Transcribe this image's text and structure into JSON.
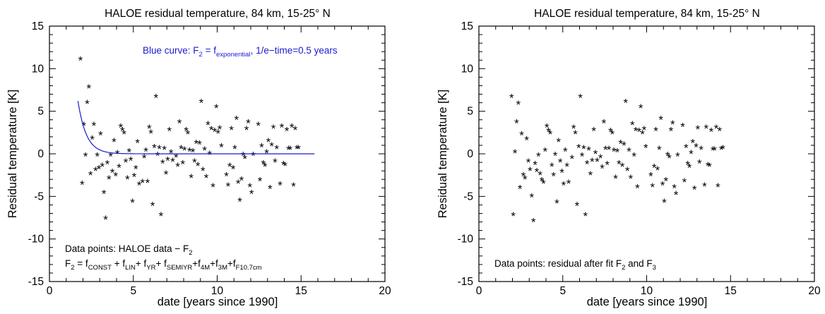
{
  "chart_data": [
    {
      "type": "scatter",
      "title": "HALOE residual temperature, 84 km, 15-25° N",
      "xlabel": "date [years since 1990]",
      "ylabel": "Residual temperature [K]",
      "xlim": [
        0,
        20
      ],
      "ylim": [
        -15,
        15
      ],
      "xticks": [
        "0",
        "5",
        "10",
        "15",
        "20"
      ],
      "yticks": [
        "-15",
        "-10",
        "-5",
        "0",
        "5",
        "10",
        "15"
      ],
      "marker": "*",
      "points": [
        [
          1.85,
          11.0
        ],
        [
          1.95,
          -3.6
        ],
        [
          2.05,
          3.3
        ],
        [
          2.15,
          -0.3
        ],
        [
          2.25,
          5.9
        ],
        [
          2.35,
          7.7
        ],
        [
          2.45,
          -2.5
        ],
        [
          2.55,
          1.7
        ],
        [
          2.65,
          3.3
        ],
        [
          2.75,
          -2.0
        ],
        [
          2.85,
          -0.3
        ],
        [
          2.95,
          -1.8
        ],
        [
          3.05,
          2.2
        ],
        [
          3.15,
          -1.5
        ],
        [
          3.25,
          -4.7
        ],
        [
          3.35,
          -7.7
        ],
        [
          3.45,
          -1.2
        ],
        [
          3.55,
          -3.0
        ],
        [
          3.65,
          -0.3
        ],
        [
          3.75,
          -2.2
        ],
        [
          3.85,
          1.4
        ],
        [
          3.95,
          -2.6
        ],
        [
          4.05,
          0.0
        ],
        [
          4.15,
          -1.6
        ],
        [
          4.25,
          3.1
        ],
        [
          4.35,
          2.7
        ],
        [
          4.45,
          2.3
        ],
        [
          4.55,
          -1.0
        ],
        [
          4.65,
          -3.0
        ],
        [
          4.75,
          0.2
        ],
        [
          4.85,
          -0.8
        ],
        [
          4.95,
          -5.7
        ],
        [
          5.05,
          -2.7
        ],
        [
          5.15,
          -1.8
        ],
        [
          5.25,
          1.3
        ],
        [
          5.35,
          -3.7
        ],
        [
          5.55,
          -3.4
        ],
        [
          5.65,
          -0.5
        ],
        [
          5.75,
          0.3
        ],
        [
          5.85,
          -3.4
        ],
        [
          5.95,
          3.0
        ],
        [
          6.05,
          2.4
        ],
        [
          6.15,
          -6.1
        ],
        [
          6.25,
          0.7
        ],
        [
          6.35,
          6.6
        ],
        [
          6.45,
          -0.2
        ],
        [
          6.55,
          0.6
        ],
        [
          6.65,
          -7.3
        ],
        [
          6.75,
          -1.1
        ],
        [
          6.85,
          0.5
        ],
        [
          6.95,
          -2.4
        ],
        [
          7.05,
          -0.8
        ],
        [
          7.15,
          2.7
        ],
        [
          7.25,
          0.1
        ],
        [
          7.35,
          -0.9
        ],
        [
          7.55,
          -0.4
        ],
        [
          7.65,
          -1.5
        ],
        [
          7.75,
          3.6
        ],
        [
          7.85,
          0.6
        ],
        [
          7.95,
          -1.2
        ],
        [
          8.05,
          0.4
        ],
        [
          8.15,
          2.7
        ],
        [
          8.25,
          2.3
        ],
        [
          8.35,
          0.3
        ],
        [
          8.45,
          -2.8
        ],
        [
          8.55,
          0.2
        ],
        [
          8.65,
          -1.0
        ],
        [
          8.75,
          1.2
        ],
        [
          8.85,
          -1.4
        ],
        [
          8.95,
          1.1
        ],
        [
          9.05,
          6.0
        ],
        [
          9.15,
          -2.0
        ],
        [
          9.25,
          0.4
        ],
        [
          9.35,
          -2.8
        ],
        [
          9.45,
          3.4
        ],
        [
          9.55,
          -0.1
        ],
        [
          9.65,
          2.8
        ],
        [
          9.75,
          -3.9
        ],
        [
          9.85,
          2.6
        ],
        [
          9.95,
          5.4
        ],
        [
          10.05,
          2.4
        ],
        [
          10.15,
          2.9
        ],
        [
          10.25,
          0.8
        ],
        [
          10.55,
          -2.6
        ],
        [
          10.65,
          -3.8
        ],
        [
          10.75,
          -1.5
        ],
        [
          10.85,
          2.8
        ],
        [
          10.95,
          -1.8
        ],
        [
          11.05,
          0.6
        ],
        [
          11.15,
          4.0
        ],
        [
          11.25,
          -3.5
        ],
        [
          11.35,
          -5.6
        ],
        [
          11.45,
          -3.1
        ],
        [
          11.55,
          -0.2
        ],
        [
          11.65,
          -0.6
        ],
        [
          11.75,
          2.8
        ],
        [
          11.85,
          3.6
        ],
        [
          11.95,
          -3.9
        ],
        [
          12.05,
          -4.7
        ],
        [
          12.15,
          -0.2
        ],
        [
          12.45,
          3.3
        ],
        [
          12.55,
          -3.2
        ],
        [
          12.65,
          0.8
        ],
        [
          12.75,
          -1.2
        ],
        [
          12.85,
          -1.5
        ],
        [
          12.95,
          0.1
        ],
        [
          13.05,
          1.4
        ],
        [
          13.15,
          -4.1
        ],
        [
          13.25,
          0.9
        ],
        [
          13.35,
          3.0
        ],
        [
          13.45,
          -1.0
        ],
        [
          13.55,
          0.6
        ],
        [
          13.75,
          -3.7
        ],
        [
          13.85,
          3.1
        ],
        [
          13.95,
          -1.3
        ],
        [
          14.05,
          -1.4
        ],
        [
          14.15,
          2.7
        ],
        [
          14.25,
          0.5
        ],
        [
          14.35,
          0.5
        ],
        [
          14.45,
          3.1
        ],
        [
          14.55,
          -3.8
        ],
        [
          14.65,
          2.8
        ],
        [
          14.75,
          0.6
        ],
        [
          14.85,
          0.6
        ]
      ],
      "curve": {
        "label": "Blue curve: F2 = fexponential, 1/e−time=0.5 years",
        "type": "exponential",
        "x_start": 1.7,
        "x_end": 15.8,
        "y0": 6.2,
        "efold_years": 0.5
      },
      "annotations": {
        "curve_prefix": "Blue curve: F",
        "curve_sub1": "2",
        "curve_mid": " = f",
        "curve_sub2": "exponential",
        "curve_suffix": ", 1/e−time=0.5 years",
        "line1_text": "Data points: HALOE data − F",
        "line1_sub": "2",
        "f2_parts": [
          {
            "t": "F"
          },
          {
            "t": "2",
            "sub": true
          },
          {
            "t": " = f"
          },
          {
            "t": "CONST",
            "sub": true
          },
          {
            "t": " + f"
          },
          {
            "t": "LIN",
            "sub": true
          },
          {
            "t": "+ f"
          },
          {
            "t": "YR",
            "sub": true
          },
          {
            "t": "+ f"
          },
          {
            "t": "SEMIYR",
            "sub": true
          },
          {
            "t": "+f"
          },
          {
            "t": "4M",
            "sub": true
          },
          {
            "t": "+f"
          },
          {
            "t": "3M",
            "sub": true
          },
          {
            "t": "+f"
          },
          {
            "t": "F10.7cm",
            "sub": true
          }
        ]
      }
    },
    {
      "type": "scatter",
      "title": "HALOE residual temperature, 84 km, 15-25° N",
      "xlabel": "date [years since 1990]",
      "ylabel": "Residual temperature [K]",
      "xlim": [
        0,
        20
      ],
      "ylim": [
        -15,
        15
      ],
      "xticks": [
        "0",
        "5",
        "10",
        "15",
        "20"
      ],
      "yticks": [
        "-15",
        "-10",
        "-5",
        "0",
        "5",
        "10",
        "15"
      ],
      "marker": "*",
      "points": [
        [
          1.95,
          6.6
        ],
        [
          2.05,
          -7.3
        ],
        [
          2.15,
          0.1
        ],
        [
          2.25,
          3.6
        ],
        [
          2.35,
          5.8
        ],
        [
          2.45,
          -4.1
        ],
        [
          2.55,
          2.2
        ],
        [
          2.65,
          -2.6
        ],
        [
          2.75,
          -3.0
        ],
        [
          2.85,
          1.6
        ],
        [
          2.95,
          -1.0
        ],
        [
          3.05,
          -2.0
        ],
        [
          3.15,
          -5.1
        ],
        [
          3.25,
          -8.0
        ],
        [
          3.35,
          -1.3
        ],
        [
          3.45,
          -2.1
        ],
        [
          3.55,
          -0.3
        ],
        [
          3.65,
          -2.5
        ],
        [
          3.75,
          -3.2
        ],
        [
          3.85,
          -3.5
        ],
        [
          3.95,
          0.3
        ],
        [
          4.05,
          3.1
        ],
        [
          4.15,
          2.6
        ],
        [
          4.25,
          2.3
        ],
        [
          4.35,
          -1.5
        ],
        [
          4.45,
          -2.6
        ],
        [
          4.55,
          -0.2
        ],
        [
          4.65,
          -5.8
        ],
        [
          4.75,
          1.4
        ],
        [
          4.85,
          -1.0
        ],
        [
          4.95,
          -2.2
        ],
        [
          5.05,
          -3.7
        ],
        [
          5.15,
          0.3
        ],
        [
          5.25,
          -1.5
        ],
        [
          5.35,
          -3.5
        ],
        [
          5.55,
          -0.6
        ],
        [
          5.65,
          3.0
        ],
        [
          5.75,
          2.3
        ],
        [
          5.85,
          -6.1
        ],
        [
          5.95,
          0.7
        ],
        [
          6.05,
          6.6
        ],
        [
          6.15,
          -0.3
        ],
        [
          6.25,
          0.6
        ],
        [
          6.35,
          -7.3
        ],
        [
          6.45,
          -1.2
        ],
        [
          6.55,
          0.4
        ],
        [
          6.65,
          -2.5
        ],
        [
          6.75,
          -0.9
        ],
        [
          6.85,
          2.7
        ],
        [
          6.95,
          0.0
        ],
        [
          7.05,
          -0.9
        ],
        [
          7.25,
          -0.5
        ],
        [
          7.35,
          -1.7
        ],
        [
          7.45,
          3.6
        ],
        [
          7.55,
          0.5
        ],
        [
          7.65,
          -1.3
        ],
        [
          7.75,
          0.5
        ],
        [
          7.85,
          2.6
        ],
        [
          7.95,
          2.3
        ],
        [
          8.05,
          0.3
        ],
        [
          8.15,
          -2.9
        ],
        [
          8.25,
          0.2
        ],
        [
          8.35,
          -1.2
        ],
        [
          8.45,
          1.2
        ],
        [
          8.55,
          -1.5
        ],
        [
          8.65,
          1.0
        ],
        [
          8.75,
          6.0
        ],
        [
          8.85,
          -2.0
        ],
        [
          8.95,
          0.3
        ],
        [
          9.05,
          -2.9
        ],
        [
          9.15,
          3.4
        ],
        [
          9.25,
          -0.3
        ],
        [
          9.35,
          2.7
        ],
        [
          9.45,
          -4.0
        ],
        [
          9.55,
          2.6
        ],
        [
          9.65,
          5.4
        ],
        [
          9.75,
          2.3
        ],
        [
          9.85,
          2.8
        ],
        [
          9.95,
          0.7
        ],
        [
          10.25,
          -2.6
        ],
        [
          10.35,
          -3.9
        ],
        [
          10.45,
          -1.6
        ],
        [
          10.55,
          2.7
        ],
        [
          10.65,
          -1.9
        ],
        [
          10.75,
          0.5
        ],
        [
          10.85,
          4.0
        ],
        [
          10.95,
          -3.7
        ],
        [
          11.05,
          -5.7
        ],
        [
          11.15,
          -3.2
        ],
        [
          11.25,
          -0.2
        ],
        [
          11.35,
          -0.5
        ],
        [
          11.45,
          2.7
        ],
        [
          11.55,
          3.5
        ],
        [
          11.65,
          -4.0
        ],
        [
          11.75,
          -4.8
        ],
        [
          11.85,
          -0.3
        ],
        [
          12.15,
          3.2
        ],
        [
          12.25,
          -3.3
        ],
        [
          12.35,
          0.7
        ],
        [
          12.45,
          -1.3
        ],
        [
          12.55,
          -1.6
        ],
        [
          12.65,
          0.0
        ],
        [
          12.75,
          1.3
        ],
        [
          12.85,
          -4.2
        ],
        [
          12.95,
          0.8
        ],
        [
          13.05,
          2.9
        ],
        [
          13.15,
          -1.1
        ],
        [
          13.25,
          0.5
        ],
        [
          13.45,
          -3.8
        ],
        [
          13.55,
          3.0
        ],
        [
          13.65,
          -1.4
        ],
        [
          13.75,
          -1.5
        ],
        [
          13.85,
          2.6
        ],
        [
          13.95,
          0.4
        ],
        [
          14.05,
          0.4
        ],
        [
          14.15,
          3.0
        ],
        [
          14.25,
          -3.9
        ],
        [
          14.35,
          2.7
        ],
        [
          14.45,
          0.5
        ],
        [
          14.55,
          0.6
        ]
      ],
      "annotations": {
        "line1_text": "Data points: residual after fit F",
        "line1_sub": "2",
        "line1_mid": " and F",
        "line1_sub2": "3"
      }
    }
  ],
  "colors": {
    "curve": "#1a1ad0",
    "axis": "#000000"
  }
}
